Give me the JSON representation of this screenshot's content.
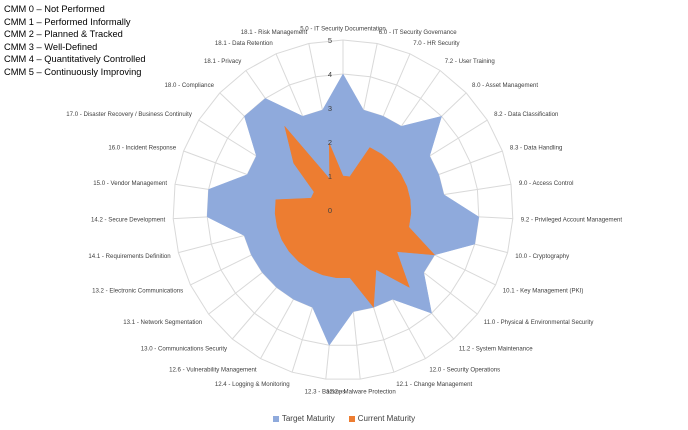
{
  "cmm_levels": [
    "CMM 0 – Not Performed",
    "CMM 1 – Performed Informally",
    "CMM 2 – Planned & Tracked",
    "CMM 3 – Well-Defined",
    "CMM 4 – Quantitatively Controlled",
    "CMM 5 – Continuously Improving"
  ],
  "chart_data": {
    "type": "radar",
    "title": "",
    "categories": [
      "5.0 - IT Security Documentation",
      "6.0 - IT Security Governance",
      "7.0 - HR Security",
      "7.2 - User Training",
      "8.0 - Asset Management",
      "8.2 - Data Classification",
      "8.3 - Data Handling",
      "9.0 - Access Control",
      "9.2 - Privileged Account Management",
      "10.0 - Cryptography",
      "10.1 - Key Management (PKI)",
      "11.0 - Physical & Environmental Security",
      "11.2 - System Maintenance",
      "12.0 - Security Operations",
      "12.1 - Change Management",
      "12.2 - Malware Protection",
      "12.3 - Backups",
      "12.4 - Logging & Monitoring",
      "12.6 - Vulnerability Management",
      "13.0 - Communications Security",
      "13.1 - Network Segmentation",
      "13.2 - Electronic Communications",
      "14.1 - Requirements Definition",
      "14.2 - Secure Development",
      "15.0 - Vendor Management",
      "16.0 - Incident Response",
      "17.0 - Disaster Recovery / Business Continuity",
      "18.0 - Compliance",
      "18.1 - Privacy",
      "18.1 - Data Retention",
      "18.1 - Risk Management"
    ],
    "rticks": [
      "0",
      "1",
      "2",
      "3",
      "4",
      "5"
    ],
    "rlim": [
      0,
      5
    ],
    "legend_position": "bottom",
    "series": [
      {
        "name": "Target Maturity",
        "color": "#8faadc",
        "values": [
          4,
          3,
          3,
          3,
          4,
          3,
          3,
          3,
          4,
          4,
          3,
          3,
          4,
          3,
          3,
          3,
          4,
          3,
          3,
          3,
          3,
          3,
          3,
          4,
          4,
          3,
          3,
          4,
          4,
          3,
          3
        ]
      },
      {
        "name": "Current Maturity",
        "color": "#ed7d31",
        "values": [
          1,
          1,
          2,
          2,
          2,
          2,
          2,
          2,
          2,
          2,
          3,
          2,
          3,
          2,
          3,
          2,
          2,
          2,
          2,
          2,
          2,
          2,
          2,
          2,
          2,
          1,
          1,
          2,
          3,
          1,
          2
        ]
      }
    ]
  }
}
